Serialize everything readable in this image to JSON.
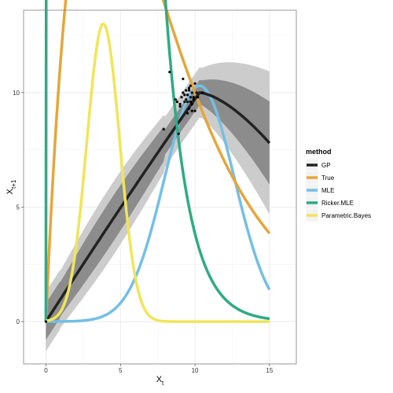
{
  "chart_data": {
    "type": "line",
    "title": "",
    "xlabel": "X",
    "xlabel_sub": "t",
    "ylabel": "X",
    "ylabel_sub": "t+1",
    "xlim": [
      -1.5,
      16.8
    ],
    "ylim": [
      -1.85,
      13.6
    ],
    "x_ticks": [
      0,
      5,
      10,
      15
    ],
    "y_ticks": [
      0,
      5,
      10
    ],
    "grid": true,
    "legend_position": "right",
    "legend_title": "method",
    "series": [
      {
        "name": "GP",
        "color": "#222222",
        "function": "gp"
      },
      {
        "name": "True",
        "color": "#E6A63A",
        "function": "ricker",
        "params": {
          "r": 2.718,
          "K": 10
        }
      },
      {
        "name": "MLE",
        "color": "#74BFE6",
        "function": "gaussian",
        "params": {
          "a": 10.3,
          "mu": 10.3,
          "sigma": 2.35
        }
      },
      {
        "name": "Ricker.MLE",
        "color": "#2EAB84",
        "function": "ricker",
        "params": {
          "r": 6.7,
          "K": 8.75
        }
      },
      {
        "name": "Parametric.Bayes",
        "color": "#F0E55A",
        "function": "gaussian",
        "params": {
          "a": 13.0,
          "mu": 3.85,
          "sigma": 1.1
        }
      }
    ],
    "bands": [
      {
        "name": "GP outer interval",
        "color": "#cccccc",
        "half_width": "outer"
      },
      {
        "name": "GP inner interval",
        "color": "#8c8c8c",
        "half_width": "inner"
      }
    ],
    "points": {
      "color": "#000000",
      "x": [
        0,
        8.3,
        8.8,
        8.9,
        9.0,
        9.1,
        9.2,
        9.3,
        9.4,
        9.5,
        9.6,
        9.7,
        9.8,
        9.9,
        10.0,
        10.1,
        10.2,
        10.5,
        9.5,
        9.6,
        9.8,
        9.7,
        9.9,
        9.4,
        9.3,
        9.6,
        9.7,
        9.0,
        9.2,
        8.7,
        9.8,
        10.0,
        7.9,
        9.8,
        9.5
      ],
      "y": [
        0,
        10.9,
        9.6,
        8.2,
        9.5,
        9.8,
        10.0,
        9.6,
        10.1,
        9.9,
        10.2,
        9.8,
        10.0,
        9.7,
        10.4,
        10.0,
        9.8,
        10.0,
        9.1,
        9.3,
        9.5,
        10.3,
        9.8,
        9.7,
        9.9,
        10.1,
        9.6,
        9.4,
        10.6,
        9.7,
        9.2,
        9.2,
        8.4,
        9.5,
        9.6
      ]
    }
  }
}
